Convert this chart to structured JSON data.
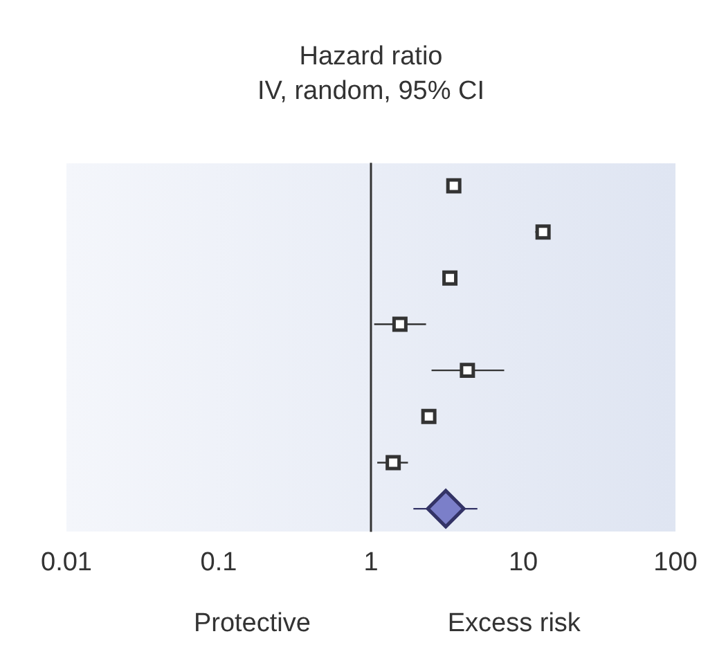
{
  "chart_data": {
    "type": "scatter",
    "orientation": "horizontal",
    "title": "Hazard ratio",
    "subtitle": "IV, random, 95% CI",
    "categories": [
      null,
      null,
      null,
      null,
      null,
      null,
      null,
      null
    ],
    "series": [
      {
        "color": "#333333",
        "marker": "square",
        "values": [
          3.5,
          13.5,
          3.3,
          1.55,
          4.3,
          2.4,
          1.4,
          null
        ],
        "errors": [
          null,
          [
            12,
            15
          ],
          null,
          [
            1.05,
            2.3
          ],
          [
            2.5,
            7.5
          ],
          null,
          [
            1.1,
            1.75
          ],
          null
        ]
      },
      {
        "color": "#7b7fc9",
        "marker": "diamond",
        "values": [
          null,
          null,
          null,
          null,
          null,
          null,
          null,
          3.1
        ],
        "errors": [
          null,
          null,
          null,
          null,
          null,
          null,
          null,
          [
            1.9,
            5
          ]
        ]
      }
    ],
    "log": "x",
    "xlim": [
      0.01,
      100
    ],
    "xticks": [
      0.01,
      0.1,
      1,
      10,
      100
    ],
    "grid": false,
    "legend": false,
    "ref_lines": [
      {
        "axis": "x",
        "value": 1,
        "color": "#333333"
      }
    ],
    "annotations": [
      "Protective",
      "Excess risk"
    ]
  }
}
